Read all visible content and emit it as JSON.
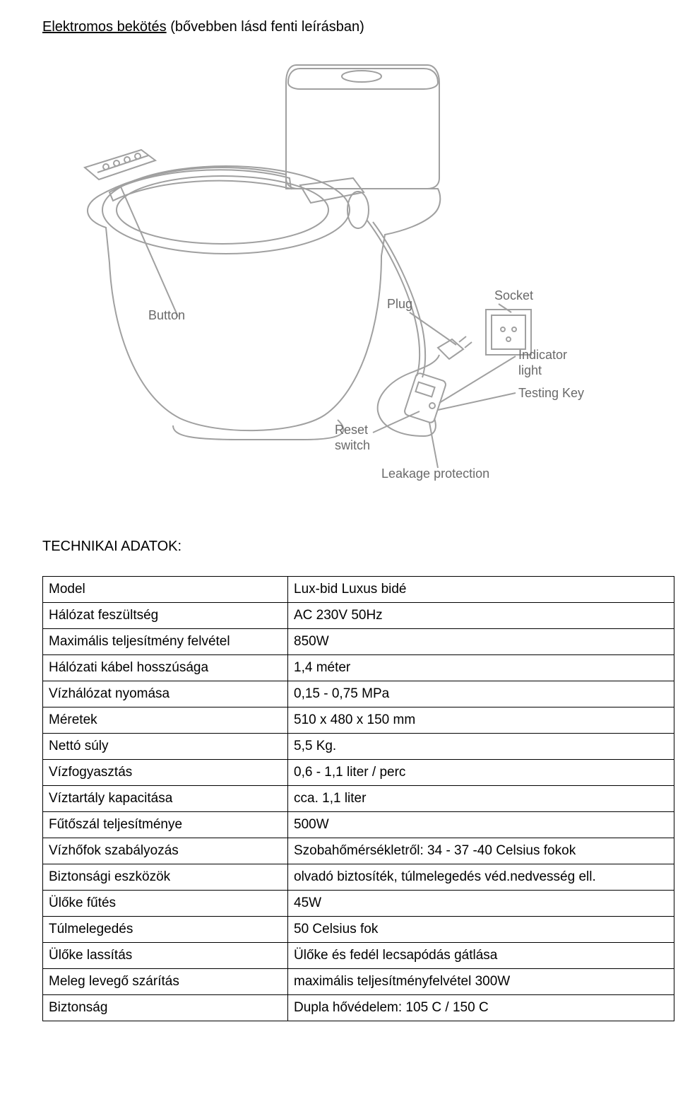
{
  "heading": {
    "underlined": "Elektromos bekötés",
    "rest": " (bővebben lásd fenti leírásban)"
  },
  "diagram": {
    "labels": {
      "button": "Button",
      "plug": "Plug",
      "socket": "Socket",
      "indicator": "Indicator",
      "indicator2": "light",
      "testing_key": "Testing Key",
      "reset1": "Reset",
      "reset2": "switch",
      "leakage": "Leakage protection"
    },
    "stroke": "#a0a0a0",
    "label_color": "#6a6a6a"
  },
  "section_title": "TECHNIKAI ADATOK:",
  "specs": [
    {
      "k": "Model",
      "v": "Lux-bid Luxus bidé"
    },
    {
      "k": "Hálózat feszültség",
      "v": "AC 230V 50Hz"
    },
    {
      "k": "Maximális teljesítmény felvétel",
      "v": "850W"
    },
    {
      "k": "Hálózati kábel hosszúsága",
      "v": "1,4 méter"
    },
    {
      "k": "Vízhálózat nyomása",
      "v": "0,15 - 0,75 MPa"
    },
    {
      "k": "Méretek",
      "v": "510 x 480 x 150 mm"
    },
    {
      "k": "Nettó súly",
      "v": "5,5 Kg."
    },
    {
      "k": "Vízfogyasztás",
      "v": "0,6 - 1,1 liter / perc"
    },
    {
      "k": "Víztartály kapacitása",
      "v": "cca. 1,1 liter"
    },
    {
      "k": "Fűtőszál teljesítménye",
      "v": "500W"
    },
    {
      "k": "Vízhőfok szabályozás",
      "v": "Szobahőmérsékletről: 34 - 37 -40 Celsius fokok"
    },
    {
      "k": "Biztonsági eszközök",
      "v": "olvadó biztosíték, túlmelegedés véd.nedvesség ell."
    },
    {
      "k": "Ülőke fűtés",
      "v": "45W"
    },
    {
      "k": "Túlmelegedés",
      "v": "50 Celsius fok"
    },
    {
      "k": "Ülőke lassítás",
      "v": "Ülőke és fedél lecsapódás gátlása"
    },
    {
      "k": "Meleg levegő szárítás",
      "v": "maximális teljesítményfelvétel  300W"
    },
    {
      "k": "Biztonság",
      "v": "Dupla hővédelem: 105 C / 150 C"
    }
  ],
  "colors": {
    "text": "#000000",
    "table_border": "#000000",
    "background": "#ffffff"
  },
  "fonts": {
    "body_size_pt": 14,
    "heading_size_pt": 15
  }
}
